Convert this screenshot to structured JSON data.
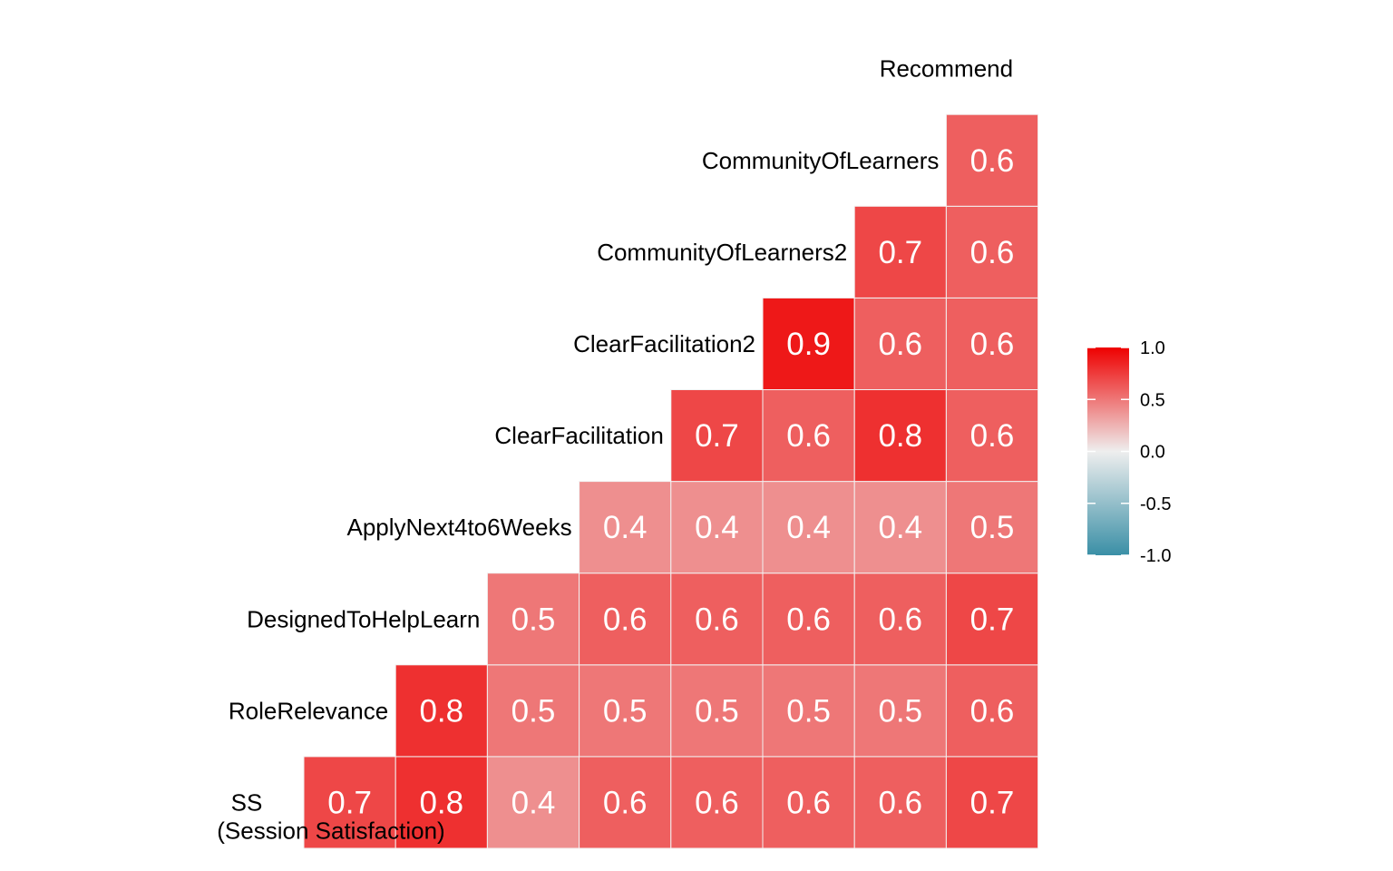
{
  "chart_data": {
    "type": "heatmap",
    "variables": [
      {
        "name": "SS",
        "sublabel": "(Session Satisfaction)"
      },
      {
        "name": "RoleRelevance"
      },
      {
        "name": "DesignedToHelpLearn"
      },
      {
        "name": "ApplyNext4to6Weeks"
      },
      {
        "name": "ClearFacilitation"
      },
      {
        "name": "ClearFacilitation2"
      },
      {
        "name": "CommunityOfLearners2"
      },
      {
        "name": "CommunityOfLearners"
      },
      {
        "name": "Recommend"
      }
    ],
    "matrix": [
      [
        0.7,
        0.8,
        0.4,
        0.6,
        0.6,
        0.6,
        0.6,
        0.7
      ],
      [
        0.8,
        0.5,
        0.5,
        0.5,
        0.5,
        0.5,
        0.6
      ],
      [
        0.5,
        0.6,
        0.6,
        0.6,
        0.6,
        0.7
      ],
      [
        0.4,
        0.4,
        0.4,
        0.4,
        0.5
      ],
      [
        0.7,
        0.6,
        0.8,
        0.6
      ],
      [
        0.9,
        0.6,
        0.6
      ],
      [
        0.7,
        0.6
      ],
      [
        0.6
      ]
    ],
    "matrix_note_rows": "row i = variable i; value j = correlation with variable i+j+1",
    "legend": {
      "position": "right",
      "range": [
        -1.0,
        1.0
      ],
      "ticks": [
        "1.0",
        "0.5",
        "0.0",
        "-0.5",
        "-1.0"
      ],
      "colors": {
        "low": "#3a8fa6",
        "mid": "#eeeeee",
        "high": "#ee0000"
      }
    }
  }
}
